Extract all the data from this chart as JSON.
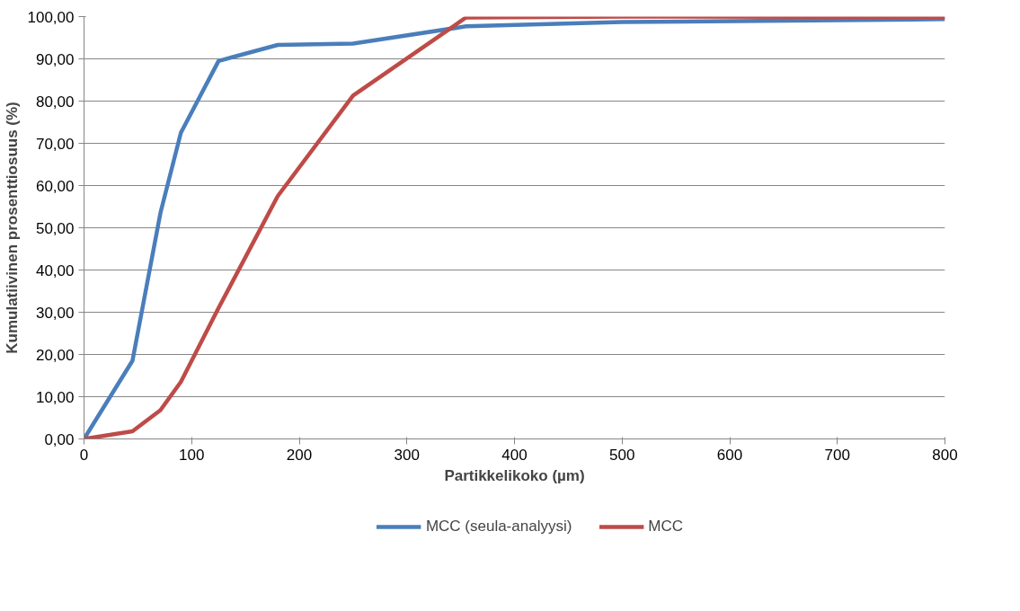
{
  "chart_data": {
    "type": "line",
    "xlabel": "Partikkelikoko (µm)",
    "ylabel": "Kumulatiivinen prosenttiosuus (%)",
    "xlim": [
      0,
      800
    ],
    "xticks": [
      0,
      100,
      200,
      300,
      400,
      500,
      600,
      700,
      800
    ],
    "ylim": [
      0,
      100
    ],
    "yticks": [
      {
        "value": 0,
        "label": "0,00"
      },
      {
        "value": 10,
        "label": "10,00"
      },
      {
        "value": 20,
        "label": "20,00"
      },
      {
        "value": 30,
        "label": "30,00"
      },
      {
        "value": 40,
        "label": "40,00"
      },
      {
        "value": 50,
        "label": "50,00"
      },
      {
        "value": 60,
        "label": "60,00"
      },
      {
        "value": 70,
        "label": "70,00"
      },
      {
        "value": 80,
        "label": "80,00"
      },
      {
        "value": 90,
        "label": "90,00"
      },
      {
        "value": 100,
        "label": "100,00"
      }
    ],
    "grid": "y",
    "legend": "bottom",
    "marker": "none",
    "line_style": "solid",
    "x": [
      0,
      45,
      71,
      90,
      125,
      180,
      250,
      355,
      500,
      800
    ],
    "series": [
      {
        "name": "MCC (seula-analyysi)",
        "color": "#4a7ebb",
        "values": [
          0,
          18.5,
          53.5,
          72.5,
          89.5,
          93.3,
          93.6,
          97.7,
          98.7,
          99.4
        ]
      },
      {
        "name": "MCC",
        "color": "#be4b48",
        "values": [
          0,
          1.8,
          6.8,
          13.5,
          31,
          57.5,
          81.3,
          99.8,
          100,
          99.9
        ]
      }
    ]
  }
}
